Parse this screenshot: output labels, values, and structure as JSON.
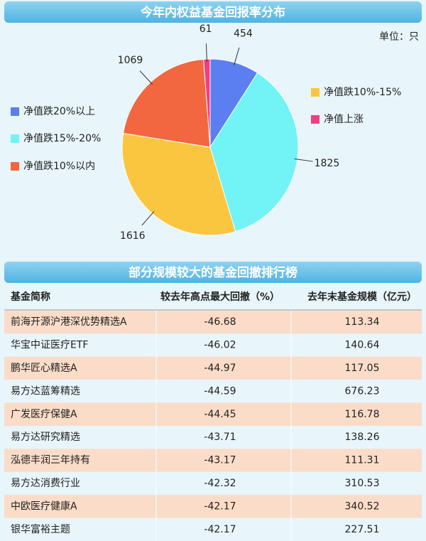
{
  "chart_data": {
    "type": "pie",
    "title": "今年内权益基金回报率分布",
    "unit": "单位：只",
    "categories": [
      "净值跌20%以上",
      "净值跌15%-20%",
      "净值跌10%-15%",
      "净值跌10%以内",
      "净值上涨"
    ],
    "values": [
      454,
      1825,
      1616,
      1069,
      61
    ],
    "colors": [
      "#5b7ff0",
      "#72f3f6",
      "#fac640",
      "#f2673f",
      "#ee3f86"
    ]
  },
  "table": {
    "title": "部分规模较大的基金回撤排行榜",
    "headers": [
      "基金简称",
      "较去年高点最大回撤（%）",
      "去年末基金规模（亿元）"
    ],
    "rows": [
      [
        "前海开源沪港深优势精选A",
        -46.68,
        113.34
      ],
      [
        "华宝中证医疗ETF",
        -46.02,
        140.64
      ],
      [
        "鹏华匠心精选A",
        -44.97,
        117.05
      ],
      [
        "易方达蓝筹精选",
        -44.59,
        676.23
      ],
      [
        "广发医疗保健A",
        -44.45,
        116.78
      ],
      [
        "易方达研究精选",
        -43.71,
        138.26
      ],
      [
        "泓德丰润三年持有",
        -43.17,
        111.31
      ],
      [
        "易方达消费行业",
        -42.32,
        310.53
      ],
      [
        "中欧医疗健康A",
        -42.17,
        340.52
      ],
      [
        "银华富裕主题",
        -42.17,
        227.51
      ]
    ]
  }
}
